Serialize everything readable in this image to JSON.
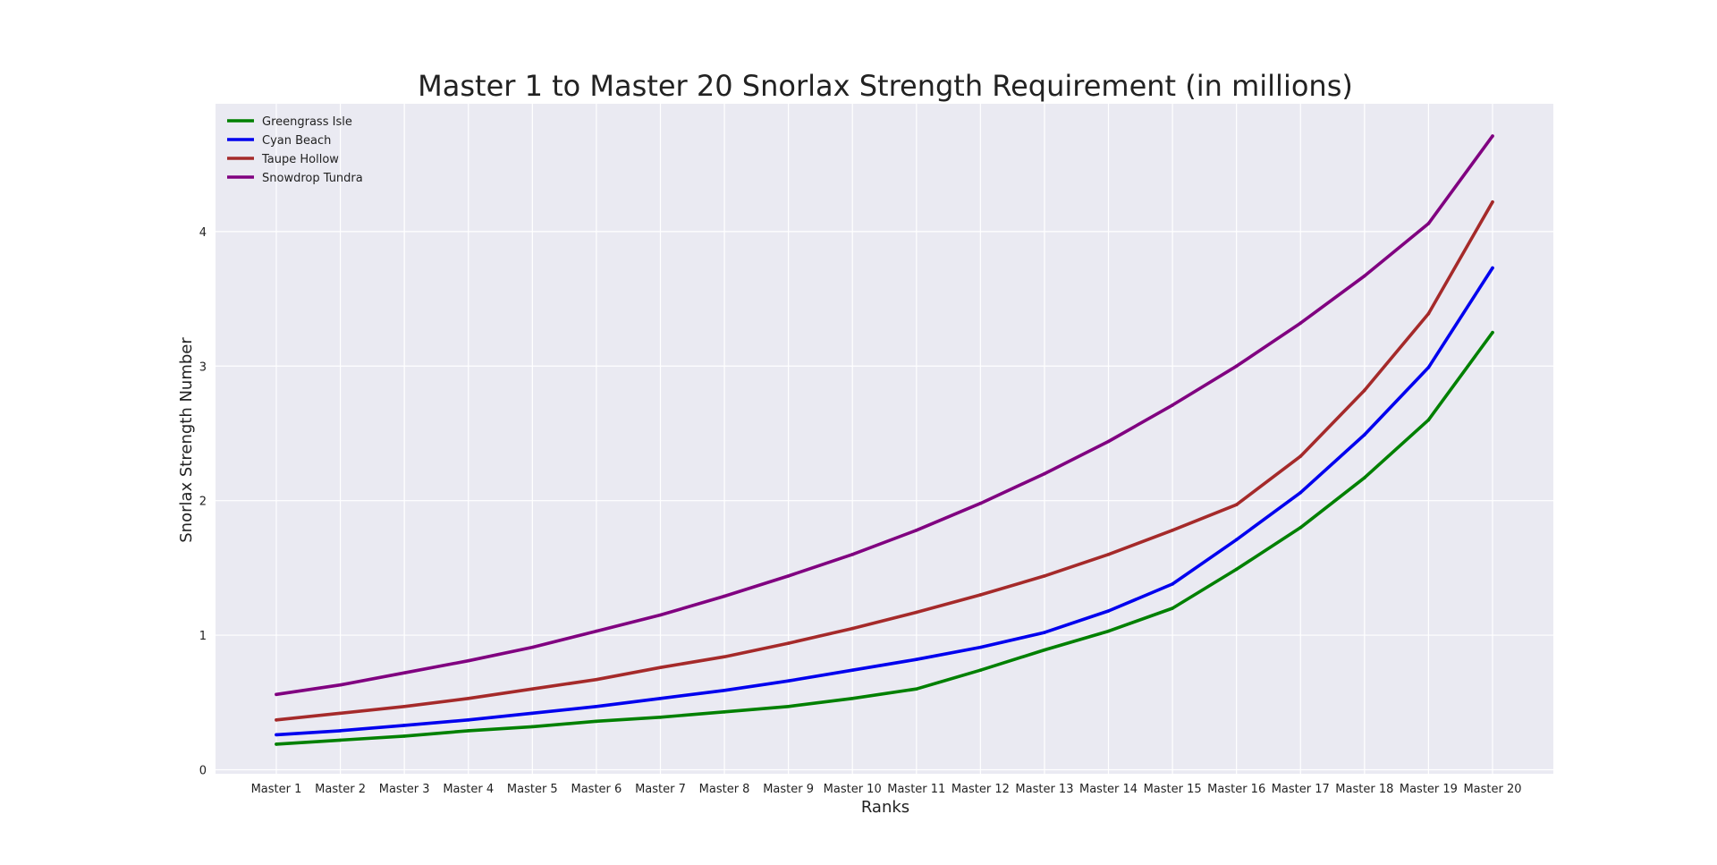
{
  "chart_data": {
    "type": "line",
    "title": "Master 1 to Master 20 Snorlax Strength Requirement (in millions)",
    "xlabel": "Ranks",
    "ylabel": "Snorlax Strength Number",
    "categories": [
      "Master 1",
      "Master 2",
      "Master 3",
      "Master 4",
      "Master 5",
      "Master 6",
      "Master 7",
      "Master 8",
      "Master 9",
      "Master 10",
      "Master 11",
      "Master 12",
      "Master 13",
      "Master 14",
      "Master 15",
      "Master 16",
      "Master 17",
      "Master 18",
      "Master 19",
      "Master 20"
    ],
    "yticks": [
      "0",
      "1",
      "2",
      "3",
      "4"
    ],
    "ylim": [
      -0.03,
      4.95
    ],
    "grid": true,
    "legend_position": "top-left",
    "background": "#eaeaf2",
    "series": [
      {
        "name": "Greengrass Isle",
        "color": "#008000",
        "values": [
          0.19,
          0.22,
          0.25,
          0.29,
          0.32,
          0.36,
          0.39,
          0.43,
          0.47,
          0.53,
          0.6,
          0.74,
          0.89,
          1.03,
          1.2,
          1.49,
          1.8,
          2.17,
          2.6,
          3.25
        ]
      },
      {
        "name": "Cyan Beach",
        "color": "#0000ee",
        "values": [
          0.26,
          0.29,
          0.33,
          0.37,
          0.42,
          0.47,
          0.53,
          0.59,
          0.66,
          0.74,
          0.82,
          0.91,
          1.02,
          1.18,
          1.38,
          1.71,
          2.06,
          2.49,
          2.99,
          3.73
        ]
      },
      {
        "name": "Taupe Hollow",
        "color": "#a52a2a",
        "values": [
          0.37,
          0.42,
          0.47,
          0.53,
          0.6,
          0.67,
          0.76,
          0.84,
          0.94,
          1.05,
          1.17,
          1.3,
          1.44,
          1.6,
          1.78,
          1.97,
          2.33,
          2.82,
          3.39,
          4.22
        ]
      },
      {
        "name": "Snowdrop Tundra",
        "color": "#800080",
        "values": [
          0.56,
          0.63,
          0.72,
          0.81,
          0.91,
          1.03,
          1.15,
          1.29,
          1.44,
          1.6,
          1.78,
          1.98,
          2.2,
          2.44,
          2.71,
          3.0,
          3.32,
          3.67,
          4.06,
          4.71
        ]
      }
    ]
  }
}
